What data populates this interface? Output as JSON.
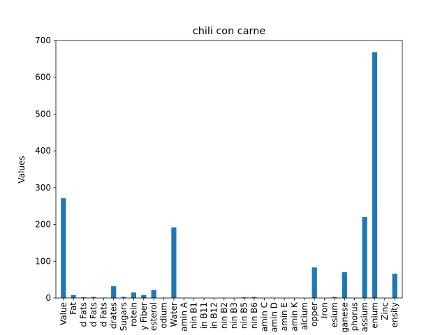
{
  "chart_data": {
    "type": "bar",
    "title": "chili con carne",
    "xlabel": "",
    "ylabel": "Values",
    "ylim": [
      0,
      700
    ],
    "yticks": [
      0,
      100,
      200,
      300,
      400,
      500,
      600,
      700
    ],
    "grid": false,
    "legend": "none",
    "bar_color": "#1f77b4",
    "categories": [
      "Value",
      "Fat",
      "d Fats",
      "d Fats",
      "d Fats",
      "drates",
      "Sugars",
      "rotein",
      "y Fiber",
      "esterol",
      "odium",
      "Water",
      "amin A",
      "nin B1",
      "in B11",
      "in B12",
      "nin B2",
      "nin B3",
      "nin B5",
      "nin B6",
      "amin C",
      "amin D",
      "amin E",
      "amin K",
      "alcium",
      "opper",
      "Iron",
      "esium",
      "ganese",
      "phorus",
      "assium",
      "enium",
      "Zinc",
      "ensity"
    ],
    "values": [
      271,
      8,
      2,
      3,
      1,
      32,
      3,
      15,
      8,
      22,
      1,
      192,
      0,
      0,
      0,
      0,
      0,
      0,
      2,
      3,
      0,
      0,
      0,
      0,
      0,
      83,
      0,
      3,
      70,
      0,
      220,
      668,
      0,
      66
    ]
  }
}
